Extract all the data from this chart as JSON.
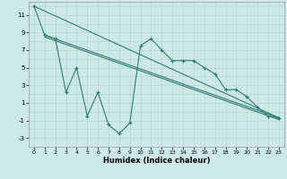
{
  "xlabel": "Humidex (Indice chaleur)",
  "background_color": "#cce9e5",
  "grid_color": "#b8d8d4",
  "line_color": "#2d7d74",
  "xlim": [
    -0.5,
    23.5
  ],
  "ylim": [
    -4,
    12.5
  ],
  "yticks": [
    -3,
    -1,
    1,
    3,
    5,
    7,
    9,
    11
  ],
  "xticks": [
    0,
    1,
    2,
    3,
    4,
    5,
    6,
    7,
    8,
    9,
    10,
    11,
    12,
    13,
    14,
    15,
    16,
    17,
    18,
    19,
    20,
    21,
    22,
    23
  ],
  "zigzag_x": [
    0,
    1,
    2,
    3,
    4,
    5,
    6,
    7,
    8,
    9,
    10,
    11,
    12,
    13,
    14,
    15,
    16,
    17,
    18,
    19,
    20,
    21,
    22,
    23
  ],
  "zigzag_y": [
    12,
    8.7,
    8.3,
    2.2,
    5.0,
    -0.5,
    2.2,
    -1.5,
    -2.5,
    -1.3,
    7.5,
    8.3,
    7.0,
    5.8,
    5.8,
    5.8,
    5.0,
    4.3,
    2.5,
    2.5,
    1.7,
    0.5,
    -0.5,
    -0.7
  ],
  "line1_x": [
    0,
    23
  ],
  "line1_y": [
    12,
    -0.7
  ],
  "line2_x": [
    1,
    23
  ],
  "line2_y": [
    8.7,
    -0.7
  ],
  "line3_x": [
    1,
    23
  ],
  "line3_y": [
    8.5,
    -0.9
  ]
}
